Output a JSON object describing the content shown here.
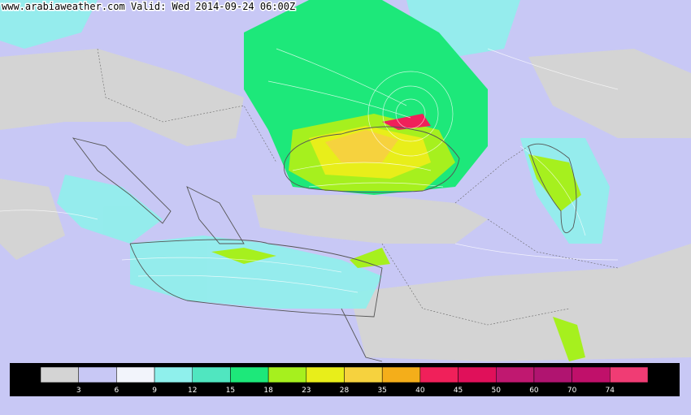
{
  "header": {
    "title": "www.arabiaweather.com Valid: Wed 2014-09-24 06:00Z"
  },
  "legend": {
    "colors": [
      "#d4d4d4",
      "#c8c8f5",
      "#f2f4fb",
      "#8ff0ec",
      "#50e6c0",
      "#1de87a",
      "#a6f01e",
      "#e8ee1a",
      "#f6d23e",
      "#f4ae1a",
      "#f0205a",
      "#e0105a",
      "#c01870",
      "#b01470",
      "#c0106a",
      "#f03c74"
    ],
    "labels": [
      3,
      6,
      9,
      12,
      15,
      18,
      23,
      28,
      35,
      40,
      45,
      50,
      60,
      70,
      74
    ]
  }
}
